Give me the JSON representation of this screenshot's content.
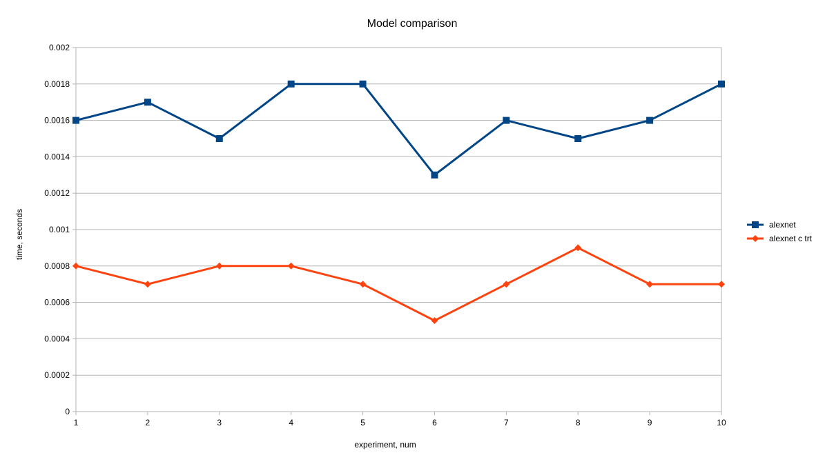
{
  "chart_data": {
    "type": "line",
    "title": "Model comparison",
    "xlabel": "experiment, num",
    "ylabel": "time, seconds",
    "categories": [
      "1",
      "2",
      "3",
      "4",
      "5",
      "6",
      "7",
      "8",
      "9",
      "10"
    ],
    "ylim": [
      0,
      0.002
    ],
    "yticks": [
      "0",
      "0.0002",
      "0.0004",
      "0.0006",
      "0.0008",
      "0.001",
      "0.0012",
      "0.0014",
      "0.0016",
      "0.0018",
      "0.002"
    ],
    "grid": true,
    "legend_position": "right",
    "series": [
      {
        "name": "alexnet",
        "color": "#004586",
        "marker": "square",
        "values": [
          0.0016,
          0.0017,
          0.0015,
          0.0018,
          0.0018,
          0.0013,
          0.0016,
          0.0015,
          0.0016,
          0.0018
        ]
      },
      {
        "name": "alexnet c trt",
        "color": "#ff420e",
        "marker": "diamond",
        "values": [
          0.0008,
          0.0007,
          0.0008,
          0.0008,
          0.0007,
          0.0005,
          0.0007,
          0.0009,
          0.0007,
          0.0007
        ]
      }
    ]
  }
}
